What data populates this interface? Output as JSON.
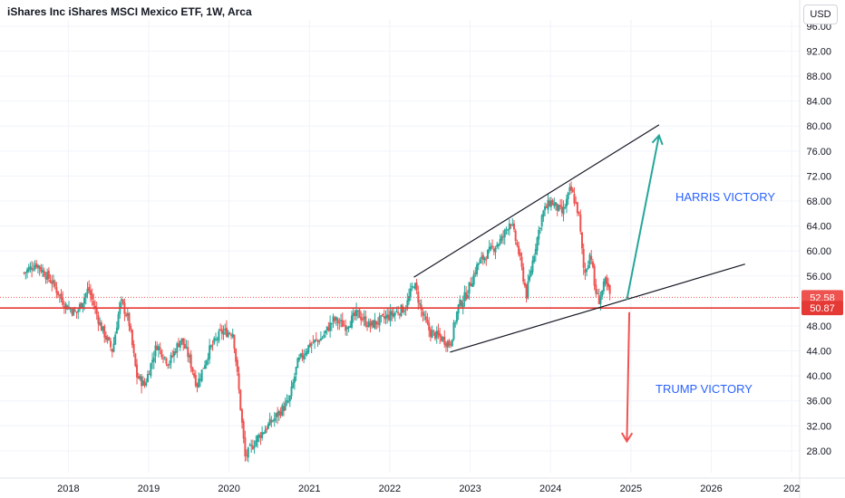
{
  "header": {
    "title": "iShares Inc iShares MSCI Mexico ETF, 1W, Arca",
    "currency": "USD"
  },
  "annotations": [
    {
      "text": "HARRIS VICTORY",
      "color": "#2962ff"
    },
    {
      "text": "TRUMP VICTORY",
      "color": "#2962ff"
    }
  ],
  "colors": {
    "up": "#26a69a",
    "down": "#ef5350",
    "line": "#e53935",
    "trend": "#131722",
    "grid": "#f0f3fa",
    "text": "#131722"
  },
  "chart_data": {
    "type": "candlestick",
    "title": "iShares Inc iShares MSCI Mexico ETF, 1W, Arca",
    "x_ticks": [
      "2018",
      "2019",
      "2020",
      "2021",
      "2022",
      "2023",
      "2024",
      "2025",
      "2026",
      "202"
    ],
    "y_ticks": [
      "28.00",
      "32.00",
      "36.00",
      "40.00",
      "44.00",
      "48.00",
      "56.00",
      "60.00",
      "64.00",
      "68.00",
      "72.00",
      "76.00",
      "80.00",
      "84.00",
      "88.00",
      "92.00",
      "96.00"
    ],
    "ylim": [
      24.5,
      97
    ],
    "price_labels": [
      {
        "value": 52.58,
        "label": "52.58",
        "color": "#ef5350",
        "line": "dotted"
      },
      {
        "value": 50.87,
        "label": "50.87",
        "color": "#e53935",
        "line": "solid"
      }
    ],
    "close_path": [
      {
        "x": 2017.45,
        "y": 56.5
      },
      {
        "x": 2017.6,
        "y": 58
      },
      {
        "x": 2017.8,
        "y": 55
      },
      {
        "x": 2017.95,
        "y": 51.5
      },
      {
        "x": 2018.1,
        "y": 50
      },
      {
        "x": 2018.25,
        "y": 54
      },
      {
        "x": 2018.4,
        "y": 48
      },
      {
        "x": 2018.55,
        "y": 44
      },
      {
        "x": 2018.65,
        "y": 52
      },
      {
        "x": 2018.75,
        "y": 49
      },
      {
        "x": 2018.85,
        "y": 40
      },
      {
        "x": 2018.95,
        "y": 38.5
      },
      {
        "x": 2019.1,
        "y": 45
      },
      {
        "x": 2019.25,
        "y": 42
      },
      {
        "x": 2019.4,
        "y": 46
      },
      {
        "x": 2019.5,
        "y": 43
      },
      {
        "x": 2019.6,
        "y": 38.5
      },
      {
        "x": 2019.75,
        "y": 44
      },
      {
        "x": 2019.9,
        "y": 47
      },
      {
        "x": 2020.05,
        "y": 47
      },
      {
        "x": 2020.12,
        "y": 38
      },
      {
        "x": 2020.2,
        "y": 27
      },
      {
        "x": 2020.35,
        "y": 30
      },
      {
        "x": 2020.55,
        "y": 33
      },
      {
        "x": 2020.75,
        "y": 36
      },
      {
        "x": 2020.85,
        "y": 42
      },
      {
        "x": 2021.0,
        "y": 45
      },
      {
        "x": 2021.15,
        "y": 46
      },
      {
        "x": 2021.3,
        "y": 49
      },
      {
        "x": 2021.45,
        "y": 48
      },
      {
        "x": 2021.6,
        "y": 50
      },
      {
        "x": 2021.75,
        "y": 48
      },
      {
        "x": 2021.9,
        "y": 49
      },
      {
        "x": 2022.05,
        "y": 50
      },
      {
        "x": 2022.2,
        "y": 51
      },
      {
        "x": 2022.3,
        "y": 55
      },
      {
        "x": 2022.4,
        "y": 50
      },
      {
        "x": 2022.5,
        "y": 47
      },
      {
        "x": 2022.65,
        "y": 46
      },
      {
        "x": 2022.75,
        "y": 45
      },
      {
        "x": 2022.85,
        "y": 51
      },
      {
        "x": 2022.95,
        "y": 53
      },
      {
        "x": 2023.1,
        "y": 58
      },
      {
        "x": 2023.25,
        "y": 60
      },
      {
        "x": 2023.4,
        "y": 62
      },
      {
        "x": 2023.5,
        "y": 65
      },
      {
        "x": 2023.6,
        "y": 60
      },
      {
        "x": 2023.7,
        "y": 53
      },
      {
        "x": 2023.8,
        "y": 60
      },
      {
        "x": 2023.9,
        "y": 66
      },
      {
        "x": 2024.0,
        "y": 68
      },
      {
        "x": 2024.15,
        "y": 66
      },
      {
        "x": 2024.25,
        "y": 70
      },
      {
        "x": 2024.35,
        "y": 66
      },
      {
        "x": 2024.42,
        "y": 56
      },
      {
        "x": 2024.5,
        "y": 60
      },
      {
        "x": 2024.55,
        "y": 54
      },
      {
        "x": 2024.6,
        "y": 52
      },
      {
        "x": 2024.68,
        "y": 55
      },
      {
        "x": 2024.75,
        "y": 52.58
      }
    ],
    "trendlines": [
      {
        "from": {
          "x": 2022.3,
          "y": 55.8
        },
        "to": {
          "x": 2025.35,
          "y": 80.2
        }
      },
      {
        "from": {
          "x": 2022.75,
          "y": 43.8
        },
        "to": {
          "x": 2026.42,
          "y": 57.9
        }
      }
    ],
    "arrows": [
      {
        "color": "#26a69a",
        "from": {
          "x": 2024.95,
          "y": 52.2
        },
        "to": {
          "x": 2025.35,
          "y": 78.5
        }
      },
      {
        "color": "#ef5350",
        "from": {
          "x": 2024.98,
          "y": 50.2
        },
        "to": {
          "x": 2024.95,
          "y": 29.5
        }
      }
    ]
  }
}
